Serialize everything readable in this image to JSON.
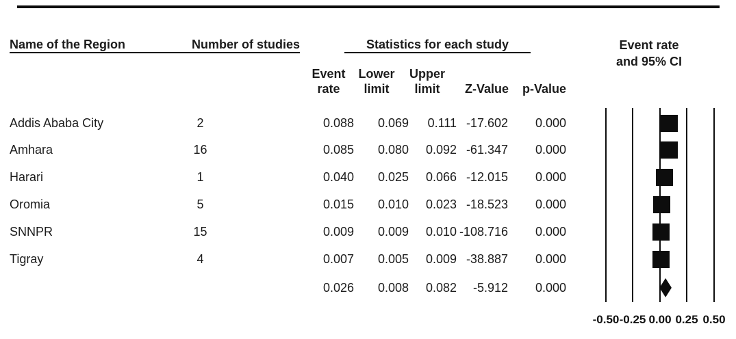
{
  "figure": {
    "headers": {
      "region": "Name of the Region",
      "studies": "Number of studies",
      "stats": "Statistics for each study",
      "plot_line1": "Event rate",
      "plot_line2": "and 95% CI"
    },
    "stat_columns": [
      {
        "line1": "Event",
        "line2": "rate"
      },
      {
        "line1": "Lower",
        "line2": "limit"
      },
      {
        "line1": "Upper",
        "line2": "limit"
      },
      {
        "line1": "",
        "line2": "Z-Value"
      },
      {
        "line1": "",
        "line2": "p-Value"
      }
    ]
  },
  "chart_data": {
    "type": "forest",
    "columns": [
      "Name of the Region",
      "Number of studies",
      "Event rate",
      "Lower limit",
      "Upper limit",
      "Z-Value",
      "p-Value"
    ],
    "rows": [
      {
        "region": "Addis Ababa City",
        "n_studies": "2",
        "event_rate": "0.088",
        "lower": "0.069",
        "upper": "0.111",
        "z": "-17.602",
        "p": "0.000",
        "overall": false
      },
      {
        "region": "Amhara",
        "n_studies": "16",
        "event_rate": "0.085",
        "lower": "0.080",
        "upper": "0.092",
        "z": "-61.347",
        "p": "0.000",
        "overall": false
      },
      {
        "region": "Harari",
        "n_studies": "1",
        "event_rate": "0.040",
        "lower": "0.025",
        "upper": "0.066",
        "z": "-12.015",
        "p": "0.000",
        "overall": false
      },
      {
        "region": "Oromia",
        "n_studies": "5",
        "event_rate": "0.015",
        "lower": "0.010",
        "upper": "0.023",
        "z": "-18.523",
        "p": "0.000",
        "overall": false
      },
      {
        "region": "SNNPR",
        "n_studies": "15",
        "event_rate": "0.009",
        "lower": "0.009",
        "upper": "0.010",
        "z": "-108.716",
        "p": "0.000",
        "overall": false
      },
      {
        "region": "Tigray",
        "n_studies": "4",
        "event_rate": "0.007",
        "lower": "0.005",
        "upper": "0.009",
        "z": "-38.887",
        "p": "0.000",
        "overall": false
      },
      {
        "region": "",
        "n_studies": "",
        "event_rate": "0.026",
        "lower": "0.008",
        "upper": "0.082",
        "z": "-5.912",
        "p": "0.000",
        "overall": true
      }
    ],
    "axis": {
      "ticks": [
        "-0.50",
        "-0.25",
        "0.00",
        "0.25",
        "0.50"
      ],
      "xlim": [
        -0.5,
        0.5
      ]
    },
    "marker_color": "#0d0d0d",
    "legend_position": "none",
    "grid": false
  }
}
